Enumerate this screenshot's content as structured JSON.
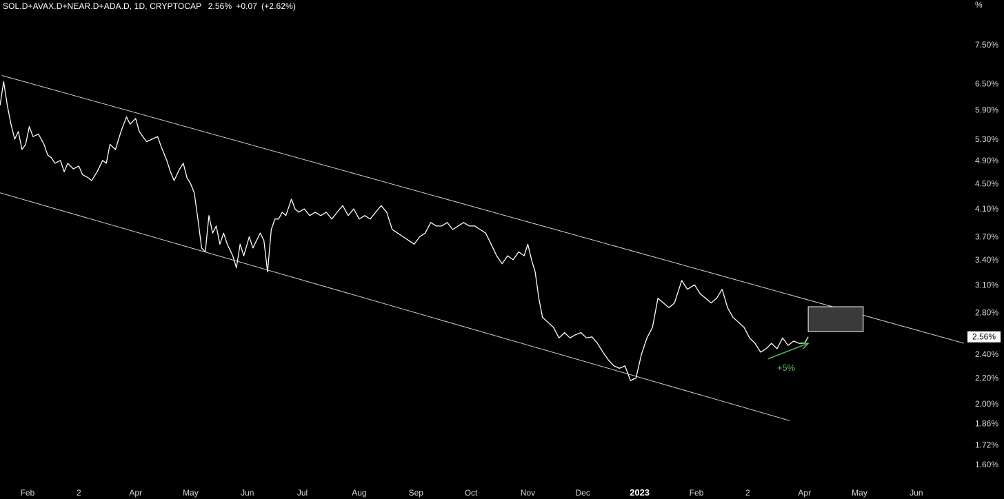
{
  "header": {
    "symbol": "SOL.D+AVAX.D+NEAR.D+ADA.D",
    "interval": "1D",
    "exchange": "CRYPTOCAP",
    "last": "2.56%",
    "change": "+0.07",
    "change_pct": "(+2.62%)"
  },
  "axis_unit": "%",
  "colors": {
    "background": "#000000",
    "line": "#ffffff",
    "channel": "#cfcfcf",
    "arrow": "#5cbf5c",
    "box_fill": "#3a3a3a"
  },
  "chart_data": {
    "type": "line",
    "title": "SOL.D+AVAX.D+NEAR.D+ADA.D, 1D, CRYPTOCAP",
    "scale": "log",
    "ylim": [
      1.55,
      8.1
    ],
    "grid": false,
    "y_ticks": [
      "7.50%",
      "6.50%",
      "5.90%",
      "5.30%",
      "4.90%",
      "4.50%",
      "4.10%",
      "3.70%",
      "3.40%",
      "3.10%",
      "2.80%",
      "2.40%",
      "2.20%",
      "2.00%",
      "1.86%",
      "1.72%",
      "1.60%"
    ],
    "y_tick_values": [
      7.5,
      6.5,
      5.9,
      5.3,
      4.9,
      4.5,
      4.1,
      3.7,
      3.4,
      3.1,
      2.8,
      2.4,
      2.2,
      2.0,
      1.86,
      1.72,
      1.6
    ],
    "x_ticks": [
      {
        "label": "Feb",
        "bold": false
      },
      {
        "label": "2",
        "bold": false
      },
      {
        "label": "Apr",
        "bold": false
      },
      {
        "label": "May",
        "bold": false
      },
      {
        "label": "Jun",
        "bold": false
      },
      {
        "label": "Jul",
        "bold": false
      },
      {
        "label": "Aug",
        "bold": false
      },
      {
        "label": "Sep",
        "bold": false
      },
      {
        "label": "Oct",
        "bold": false
      },
      {
        "label": "Nov",
        "bold": false
      },
      {
        "label": "Dec",
        "bold": false
      },
      {
        "label": "2023",
        "bold": true
      },
      {
        "label": "Feb",
        "bold": false
      },
      {
        "label": "2",
        "bold": false
      },
      {
        "label": "Apr",
        "bold": false
      },
      {
        "label": "May",
        "bold": false
      },
      {
        "label": "Jun",
        "bold": false
      }
    ],
    "x_tick_dates": [
      "2022-02-01",
      "2022-03-01",
      "2022-04-01",
      "2022-05-01",
      "2022-06-01",
      "2022-07-01",
      "2022-08-01",
      "2022-09-01",
      "2022-10-01",
      "2022-11-01",
      "2022-12-01",
      "2023-01-01",
      "2023-02-01",
      "2023-03-01",
      "2023-04-01",
      "2023-05-01",
      "2023-06-01"
    ],
    "x_range": [
      "2022-01-17",
      "2023-06-27"
    ],
    "series": [
      {
        "values": [
          [
            "2022-01-17",
            6.0
          ],
          [
            "2022-01-19",
            6.55
          ],
          [
            "2022-01-21",
            6.0
          ],
          [
            "2022-01-23",
            5.6
          ],
          [
            "2022-01-25",
            5.3
          ],
          [
            "2022-01-27",
            5.45
          ],
          [
            "2022-01-29",
            5.1
          ],
          [
            "2022-01-31",
            5.2
          ],
          [
            "2022-02-02",
            5.55
          ],
          [
            "2022-02-04",
            5.35
          ],
          [
            "2022-02-07",
            5.4
          ],
          [
            "2022-02-10",
            5.2
          ],
          [
            "2022-02-12",
            5.0
          ],
          [
            "2022-02-14",
            4.95
          ],
          [
            "2022-02-16",
            4.85
          ],
          [
            "2022-02-19",
            4.9
          ],
          [
            "2022-02-21",
            4.7
          ],
          [
            "2022-02-23",
            4.85
          ],
          [
            "2022-02-26",
            4.75
          ],
          [
            "2022-03-01",
            4.8
          ],
          [
            "2022-03-03",
            4.65
          ],
          [
            "2022-03-06",
            4.6
          ],
          [
            "2022-03-08",
            4.55
          ],
          [
            "2022-03-11",
            4.7
          ],
          [
            "2022-03-14",
            4.9
          ],
          [
            "2022-03-16",
            4.85
          ],
          [
            "2022-03-18",
            5.2
          ],
          [
            "2022-03-21",
            5.1
          ],
          [
            "2022-03-24",
            5.45
          ],
          [
            "2022-03-27",
            5.75
          ],
          [
            "2022-03-29",
            5.6
          ],
          [
            "2022-04-01",
            5.72
          ],
          [
            "2022-04-03",
            5.45
          ],
          [
            "2022-04-05",
            5.35
          ],
          [
            "2022-04-07",
            5.25
          ],
          [
            "2022-04-10",
            5.3
          ],
          [
            "2022-04-13",
            5.35
          ],
          [
            "2022-04-15",
            5.15
          ],
          [
            "2022-04-18",
            4.9
          ],
          [
            "2022-04-20",
            4.7
          ],
          [
            "2022-04-22",
            4.55
          ],
          [
            "2022-04-25",
            4.75
          ],
          [
            "2022-04-27",
            4.85
          ],
          [
            "2022-04-29",
            4.6
          ],
          [
            "2022-05-01",
            4.5
          ],
          [
            "2022-05-03",
            4.35
          ],
          [
            "2022-05-05",
            3.95
          ],
          [
            "2022-05-07",
            3.55
          ],
          [
            "2022-05-09",
            3.5
          ],
          [
            "2022-05-11",
            4.0
          ],
          [
            "2022-05-13",
            3.75
          ],
          [
            "2022-05-15",
            3.85
          ],
          [
            "2022-05-17",
            3.6
          ],
          [
            "2022-05-19",
            3.75
          ],
          [
            "2022-05-21",
            3.6
          ],
          [
            "2022-05-24",
            3.45
          ],
          [
            "2022-05-26",
            3.3
          ],
          [
            "2022-05-28",
            3.6
          ],
          [
            "2022-05-30",
            3.45
          ],
          [
            "2022-06-02",
            3.7
          ],
          [
            "2022-06-04",
            3.55
          ],
          [
            "2022-06-06",
            3.65
          ],
          [
            "2022-06-08",
            3.75
          ],
          [
            "2022-06-10",
            3.65
          ],
          [
            "2022-06-12",
            3.25
          ],
          [
            "2022-06-14",
            3.8
          ],
          [
            "2022-06-16",
            3.95
          ],
          [
            "2022-06-18",
            3.95
          ],
          [
            "2022-06-20",
            4.05
          ],
          [
            "2022-06-22",
            4.0
          ],
          [
            "2022-06-25",
            4.25
          ],
          [
            "2022-06-27",
            4.1
          ],
          [
            "2022-06-29",
            4.05
          ],
          [
            "2022-07-02",
            4.1
          ],
          [
            "2022-07-05",
            4.0
          ],
          [
            "2022-07-08",
            4.05
          ],
          [
            "2022-07-11",
            4.0
          ],
          [
            "2022-07-14",
            4.05
          ],
          [
            "2022-07-17",
            3.95
          ],
          [
            "2022-07-20",
            4.05
          ],
          [
            "2022-07-23",
            4.15
          ],
          [
            "2022-07-26",
            4.0
          ],
          [
            "2022-07-29",
            4.1
          ],
          [
            "2022-08-01",
            3.95
          ],
          [
            "2022-08-04",
            4.0
          ],
          [
            "2022-08-07",
            3.95
          ],
          [
            "2022-08-10",
            4.05
          ],
          [
            "2022-08-13",
            4.15
          ],
          [
            "2022-08-16",
            4.05
          ],
          [
            "2022-08-19",
            3.8
          ],
          [
            "2022-08-22",
            3.75
          ],
          [
            "2022-08-25",
            3.7
          ],
          [
            "2022-08-28",
            3.65
          ],
          [
            "2022-08-31",
            3.6
          ],
          [
            "2022-09-03",
            3.7
          ],
          [
            "2022-09-06",
            3.75
          ],
          [
            "2022-09-09",
            3.9
          ],
          [
            "2022-09-12",
            3.85
          ],
          [
            "2022-09-15",
            3.85
          ],
          [
            "2022-09-18",
            3.9
          ],
          [
            "2022-09-21",
            3.8
          ],
          [
            "2022-09-24",
            3.85
          ],
          [
            "2022-09-27",
            3.9
          ],
          [
            "2022-09-30",
            3.85
          ],
          [
            "2022-10-03",
            3.85
          ],
          [
            "2022-10-06",
            3.8
          ],
          [
            "2022-10-09",
            3.75
          ],
          [
            "2022-10-12",
            3.6
          ],
          [
            "2022-10-15",
            3.45
          ],
          [
            "2022-10-18",
            3.35
          ],
          [
            "2022-10-21",
            3.45
          ],
          [
            "2022-10-24",
            3.4
          ],
          [
            "2022-10-27",
            3.5
          ],
          [
            "2022-10-30",
            3.45
          ],
          [
            "2022-11-01",
            3.6
          ],
          [
            "2022-11-03",
            3.4
          ],
          [
            "2022-11-05",
            3.25
          ],
          [
            "2022-11-07",
            2.95
          ],
          [
            "2022-11-09",
            2.75
          ],
          [
            "2022-11-12",
            2.7
          ],
          [
            "2022-11-15",
            2.65
          ],
          [
            "2022-11-18",
            2.55
          ],
          [
            "2022-11-21",
            2.6
          ],
          [
            "2022-11-24",
            2.55
          ],
          [
            "2022-11-27",
            2.58
          ],
          [
            "2022-11-30",
            2.6
          ],
          [
            "2022-12-03",
            2.55
          ],
          [
            "2022-12-06",
            2.56
          ],
          [
            "2022-12-09",
            2.5
          ],
          [
            "2022-12-12",
            2.42
          ],
          [
            "2022-12-15",
            2.35
          ],
          [
            "2022-12-18",
            2.3
          ],
          [
            "2022-12-21",
            2.28
          ],
          [
            "2022-12-24",
            2.3
          ],
          [
            "2022-12-27",
            2.18
          ],
          [
            "2022-12-30",
            2.2
          ],
          [
            "2023-01-02",
            2.4
          ],
          [
            "2023-01-05",
            2.55
          ],
          [
            "2023-01-08",
            2.65
          ],
          [
            "2023-01-11",
            2.95
          ],
          [
            "2023-01-14",
            2.9
          ],
          [
            "2023-01-17",
            2.85
          ],
          [
            "2023-01-20",
            2.9
          ],
          [
            "2023-01-24",
            3.15
          ],
          [
            "2023-01-27",
            3.05
          ],
          [
            "2023-01-31",
            3.1
          ],
          [
            "2023-02-03",
            3.0
          ],
          [
            "2023-02-06",
            2.95
          ],
          [
            "2023-02-09",
            2.9
          ],
          [
            "2023-02-12",
            2.95
          ],
          [
            "2023-02-15",
            3.05
          ],
          [
            "2023-02-18",
            2.85
          ],
          [
            "2023-02-21",
            2.75
          ],
          [
            "2023-02-24",
            2.7
          ],
          [
            "2023-02-27",
            2.65
          ],
          [
            "2023-03-02",
            2.55
          ],
          [
            "2023-03-05",
            2.5
          ],
          [
            "2023-03-08",
            2.42
          ],
          [
            "2023-03-11",
            2.45
          ],
          [
            "2023-03-14",
            2.5
          ],
          [
            "2023-03-17",
            2.45
          ],
          [
            "2023-03-20",
            2.55
          ],
          [
            "2023-03-23",
            2.48
          ],
          [
            "2023-03-26",
            2.52
          ],
          [
            "2023-03-29",
            2.5
          ],
          [
            "2023-04-01",
            2.5
          ],
          [
            "2023-04-03",
            2.56
          ]
        ]
      }
    ],
    "drawings": {
      "channel_upper": [
        [
          "2022-01-18",
          6.7
        ],
        [
          "2023-06-27",
          2.5
        ]
      ],
      "channel_lower": [
        [
          "2022-01-17",
          4.35
        ],
        [
          "2023-03-24",
          1.88
        ]
      ],
      "target_box": {
        "x0": "2023-04-03",
        "x1": "2023-05-03",
        "y0": 2.61,
        "y1": 2.86
      },
      "arrow": {
        "from": [
          "2023-03-12",
          2.36
        ],
        "to": [
          "2023-04-03",
          2.5
        ]
      }
    },
    "annotation": "+5%",
    "last_value_label": "2.56%"
  }
}
